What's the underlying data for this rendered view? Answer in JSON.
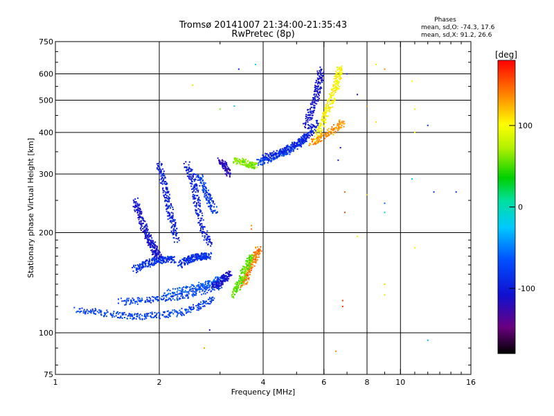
{
  "chart_data": {
    "type": "scatter",
    "title": "Tromsø 20141007 21:34:00-21:35:43",
    "subtitle": "RwPretec (8p)",
    "xlabel": "Frequency [MHz]",
    "ylabel": "Stationary phase Virtual Height [km]",
    "x_scale": "log2",
    "y_scale": "log",
    "xlim": [
      1,
      16
    ],
    "ylim": [
      75,
      750
    ],
    "x_ticks": [
      1,
      2,
      4,
      6,
      8,
      10,
      16
    ],
    "x_tick_labels": [
      "1",
      "2",
      "4",
      "6",
      "8",
      "10",
      "16"
    ],
    "x_grid": [
      2,
      4,
      6,
      8,
      10
    ],
    "y_ticks": [
      75,
      100,
      200,
      300,
      400,
      500,
      600,
      750
    ],
    "y_tick_labels": [
      "75",
      "100",
      "200",
      "300",
      "400",
      "500",
      "600",
      "750"
    ],
    "y_grid": [
      100,
      200,
      300,
      400,
      500,
      600
    ],
    "grid": true,
    "stats": {
      "header": "Phases",
      "line_o": "mean, sd,O: -74.3, 17.6",
      "line_x": "mean, sd,X:  91.2, 26.6"
    },
    "colorbar": {
      "label": "[deg]",
      "range": [
        -180,
        180
      ],
      "ticks": [
        -100,
        0,
        100
      ],
      "tick_labels": [
        "-100",
        "0",
        "100"
      ],
      "colormap": "rainbow (black-purple-blue-cyan-green-yellow-red)"
    },
    "traces": [
      {
        "x": [
          1.15,
          1.35,
          1.55,
          1.75,
          2.0,
          2.3,
          2.6,
          2.9
        ],
        "y": [
          117,
          115,
          113,
          112,
          113,
          115,
          120,
          127
        ],
        "phase": -80
      },
      {
        "x": [
          1.55,
          1.8,
          2.1,
          2.4,
          2.7,
          3.0
        ],
        "y": [
          124,
          125,
          127,
          130,
          134,
          138
        ],
        "phase": -80
      },
      {
        "x": [
          2.1,
          2.4,
          2.7,
          2.9,
          3.1
        ],
        "y": [
          132,
          135,
          139,
          143,
          148
        ],
        "phase": -70
      },
      {
        "x": [
          1.7,
          1.8,
          1.9,
          2.0,
          2.1,
          2.2
        ],
        "y": [
          155,
          160,
          163,
          165,
          166,
          166
        ],
        "phase": -90
      },
      {
        "x": [
          2.3,
          2.4,
          2.5,
          2.6,
          2.7,
          2.8
        ],
        "y": [
          160,
          165,
          168,
          169,
          170,
          170
        ],
        "phase": -90
      },
      {
        "x": [
          2.9,
          3.0,
          3.1,
          3.2
        ],
        "y": [
          138,
          142,
          146,
          150
        ],
        "phase": -110
      },
      {
        "x": [
          1.7,
          1.75,
          1.8,
          1.85,
          1.9,
          1.95,
          2.0
        ],
        "y": [
          250,
          230,
          210,
          195,
          185,
          175,
          170
        ],
        "phase": -110
      },
      {
        "x": [
          2.0,
          2.05,
          2.1,
          2.15,
          2.2,
          2.25
        ],
        "y": [
          320,
          290,
          260,
          230,
          210,
          190
        ],
        "phase": -100
      },
      {
        "x": [
          2.4,
          2.5,
          2.55,
          2.6,
          2.7,
          2.8
        ],
        "y": [
          320,
          290,
          260,
          230,
          200,
          185
        ],
        "phase": -100
      },
      {
        "x": [
          2.6,
          2.7,
          2.8,
          2.9
        ],
        "y": [
          300,
          270,
          250,
          230
        ],
        "phase": -85
      },
      {
        "x": [
          3.0,
          3.1,
          3.2
        ],
        "y": [
          330,
          315,
          300
        ],
        "phase": -120
      },
      {
        "x": [
          3.3,
          3.5,
          3.7,
          3.8
        ],
        "y": [
          330,
          325,
          320,
          318
        ],
        "phase": 60
      },
      {
        "x": [
          3.9,
          4.2,
          4.5,
          4.8,
          5.1,
          5.3
        ],
        "y": [
          325,
          335,
          345,
          355,
          370,
          385
        ],
        "phase": -80
      },
      {
        "x": [
          4.0,
          4.4,
          4.8,
          5.2,
          5.5,
          5.7
        ],
        "y": [
          335,
          345,
          360,
          380,
          400,
          430
        ],
        "phase": -100
      },
      {
        "x": [
          5.3,
          5.5,
          5.7,
          5.8,
          5.9
        ],
        "y": [
          420,
          460,
          510,
          560,
          620
        ],
        "phase": -110
      },
      {
        "x": [
          5.7,
          5.9,
          6.1,
          6.3,
          6.5,
          6.6,
          6.7
        ],
        "y": [
          380,
          420,
          460,
          500,
          550,
          590,
          630
        ],
        "phase": 100
      },
      {
        "x": [
          5.5,
          6.0,
          6.5,
          6.8
        ],
        "y": [
          370,
          390,
          410,
          430
        ],
        "phase": 135
      },
      {
        "x": [
          3.5,
          3.6,
          3.7,
          3.8,
          3.9
        ],
        "y": [
          140,
          150,
          160,
          170,
          180
        ],
        "phase": 145
      },
      {
        "x": [
          3.3,
          3.4,
          3.5,
          3.6,
          3.7
        ],
        "y": [
          130,
          140,
          150,
          160,
          170
        ],
        "phase": 50
      }
    ],
    "scatter": [
      {
        "x": 6.5,
        "y": 88,
        "phase": 140
      },
      {
        "x": 2.7,
        "y": 90,
        "phase": 130
      },
      {
        "x": 12.0,
        "y": 95,
        "phase": -40
      },
      {
        "x": 6.8,
        "y": 125,
        "phase": 165
      },
      {
        "x": 6.8,
        "y": 120,
        "phase": 170
      },
      {
        "x": 9.0,
        "y": 130,
        "phase": 110
      },
      {
        "x": 9.0,
        "y": 140,
        "phase": 115
      },
      {
        "x": 11.0,
        "y": 180,
        "phase": 90
      },
      {
        "x": 7.5,
        "y": 195,
        "phase": 100
      },
      {
        "x": 6.9,
        "y": 230,
        "phase": 160
      },
      {
        "x": 6.9,
        "y": 265,
        "phase": 150
      },
      {
        "x": 8.0,
        "y": 260,
        "phase": 120
      },
      {
        "x": 9.0,
        "y": 230,
        "phase": -10
      },
      {
        "x": 9.0,
        "y": 245,
        "phase": -60
      },
      {
        "x": 10.8,
        "y": 290,
        "phase": -30
      },
      {
        "x": 12.5,
        "y": 265,
        "phase": -90
      },
      {
        "x": 14.5,
        "y": 265,
        "phase": -90
      },
      {
        "x": 3.7,
        "y": 210,
        "phase": 140
      },
      {
        "x": 8.5,
        "y": 640,
        "phase": 90
      },
      {
        "x": 9.0,
        "y": 620,
        "phase": 140
      },
      {
        "x": 10.8,
        "y": 570,
        "phase": 100
      },
      {
        "x": 11.0,
        "y": 470,
        "phase": 110
      },
      {
        "x": 12.0,
        "y": 420,
        "phase": -90
      },
      {
        "x": 11.0,
        "y": 400,
        "phase": 100
      },
      {
        "x": 8.0,
        "y": 480,
        "phase": 140
      },
      {
        "x": 7.5,
        "y": 520,
        "phase": -110
      },
      {
        "x": 3.4,
        "y": 620,
        "phase": -100
      },
      {
        "x": 3.8,
        "y": 640,
        "phase": -30
      },
      {
        "x": 6.6,
        "y": 330,
        "phase": -110
      },
      {
        "x": 6.7,
        "y": 360,
        "phase": -110
      },
      {
        "x": 3.0,
        "y": 470,
        "phase": 60
      },
      {
        "x": 3.3,
        "y": 480,
        "phase": -20
      },
      {
        "x": 2.5,
        "y": 555,
        "phase": 80
      },
      {
        "x": 3.7,
        "y": 205,
        "phase": 150
      },
      {
        "x": 2.8,
        "y": 102,
        "phase": -130
      },
      {
        "x": 7.0,
        "y": 600,
        "phase": -90
      },
      {
        "x": 8.5,
        "y": 430,
        "phase": 110
      }
    ]
  }
}
